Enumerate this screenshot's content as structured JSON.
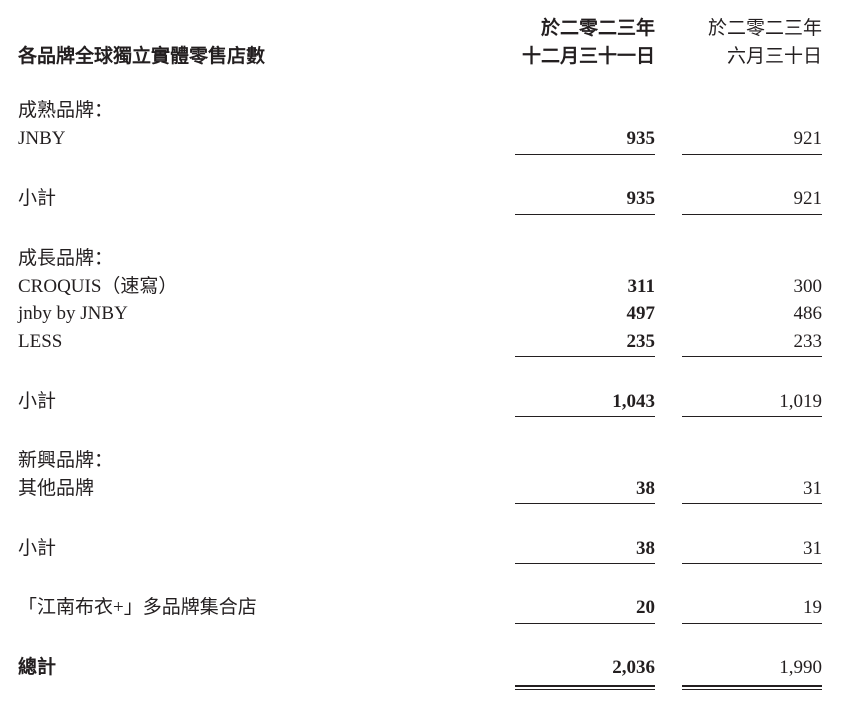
{
  "header": {
    "title": "各品牌全球獨立實體零售店數",
    "col1": {
      "line1": "於二零二三年",
      "line2": "十二月三十一日"
    },
    "col2": {
      "line1": "於二零二三年",
      "line2": "六月三十日"
    }
  },
  "rows": [
    {
      "label": "成熟品牌："
    },
    {
      "label": "JNBY",
      "v1": "935",
      "v2": "921"
    },
    {
      "label": "小計",
      "v1": "935",
      "v2": "921"
    },
    {
      "label": "成長品牌："
    },
    {
      "label": "CROQUIS（速寫）",
      "v1": "311",
      "v2": "300"
    },
    {
      "label": "jnby by JNBY",
      "v1": "497",
      "v2": "486"
    },
    {
      "label": "LESS",
      "v1": "235",
      "v2": "233"
    },
    {
      "label": "小計",
      "v1": "1,043",
      "v2": "1,019"
    },
    {
      "label": "新興品牌："
    },
    {
      "label": "其他品牌",
      "v1": "38",
      "v2": "31"
    },
    {
      "label": "小計",
      "v1": "38",
      "v2": "31"
    },
    {
      "label": "「江南布衣+」多品牌集合店",
      "v1": "20",
      "v2": "19"
    },
    {
      "label": "總計",
      "v1": "2,036",
      "v2": "1,990"
    }
  ]
}
